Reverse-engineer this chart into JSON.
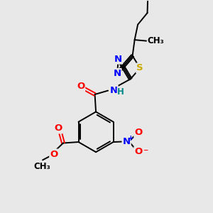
{
  "background_color": "#e8e8e8",
  "bond_color": "#000000",
  "atom_colors": {
    "N": "#0000ff",
    "O": "#ff0000",
    "S": "#ccaa00",
    "C": "#000000",
    "H": "#008888"
  },
  "figsize": [
    3.0,
    3.0
  ],
  "dpi": 100
}
